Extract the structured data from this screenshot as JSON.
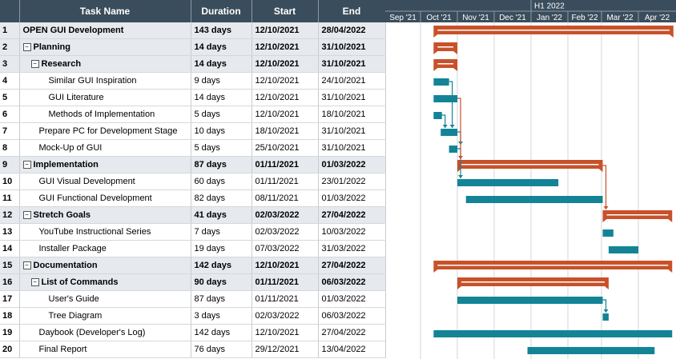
{
  "columns": {
    "id": "",
    "task": "Task Name",
    "duration": "Duration",
    "start": "Start",
    "end": "End"
  },
  "timeline": {
    "period": "H1 2022",
    "months": [
      "Sep '21",
      "Oct '21",
      "Nov '21",
      "Dec '21",
      "Jan '22",
      "Feb '22",
      "Mar '22",
      "Apr '22"
    ]
  },
  "colors": {
    "summary_bar": "#c8512a",
    "task_bar": "#138496",
    "header_bg": "#3a4d5c",
    "summary_row": "#e6e9ed"
  },
  "tasks": [
    {
      "id": "1",
      "name": "OPEN GUI Development",
      "duration": "143 days",
      "start": "12/10/2021",
      "end": "28/04/2022",
      "level": 0,
      "summary": true,
      "toggle": false,
      "s": "2021-10-12",
      "e": "2022-04-28"
    },
    {
      "id": "2",
      "name": "Planning",
      "duration": "14 days",
      "start": "12/10/2021",
      "end": "31/10/2021",
      "level": 0,
      "summary": true,
      "toggle": true,
      "s": "2021-10-12",
      "e": "2021-10-31"
    },
    {
      "id": "3",
      "name": "Research",
      "duration": "14 days",
      "start": "12/10/2021",
      "end": "31/10/2021",
      "level": 1,
      "summary": true,
      "toggle": true,
      "s": "2021-10-12",
      "e": "2021-10-31"
    },
    {
      "id": "4",
      "name": "Similar GUI Inspiration",
      "duration": "9 days",
      "start": "12/10/2021",
      "end": "24/10/2021",
      "level": 3,
      "summary": false,
      "toggle": false,
      "s": "2021-10-12",
      "e": "2021-10-24"
    },
    {
      "id": "5",
      "name": "GUI Literature",
      "duration": "14 days",
      "start": "12/10/2021",
      "end": "31/10/2021",
      "level": 3,
      "summary": false,
      "toggle": false,
      "s": "2021-10-12",
      "e": "2021-10-31"
    },
    {
      "id": "6",
      "name": "Methods of Implementation",
      "duration": "5 days",
      "start": "12/10/2021",
      "end": "18/10/2021",
      "level": 3,
      "summary": false,
      "toggle": false,
      "s": "2021-10-12",
      "e": "2021-10-18"
    },
    {
      "id": "7",
      "name": "Prepare PC for Development Stage",
      "duration": "10 days",
      "start": "18/10/2021",
      "end": "31/10/2021",
      "level": 2,
      "summary": false,
      "toggle": false,
      "s": "2021-10-18",
      "e": "2021-10-31"
    },
    {
      "id": "8",
      "name": "Mock-Up of GUI",
      "duration": "5 days",
      "start": "25/10/2021",
      "end": "31/10/2021",
      "level": 2,
      "summary": false,
      "toggle": false,
      "s": "2021-10-25",
      "e": "2021-10-31"
    },
    {
      "id": "9",
      "name": "Implementation",
      "duration": "87 days",
      "start": "01/11/2021",
      "end": "01/03/2022",
      "level": 0,
      "summary": true,
      "toggle": true,
      "s": "2021-11-01",
      "e": "2022-03-01"
    },
    {
      "id": "10",
      "name": "GUI Visual Development",
      "duration": "60 days",
      "start": "01/11/2021",
      "end": "23/01/2022",
      "level": 2,
      "summary": false,
      "toggle": false,
      "s": "2021-11-01",
      "e": "2022-01-23"
    },
    {
      "id": "11",
      "name": "GUI Functional Development",
      "duration": "82 days",
      "start": "08/11/2021",
      "end": "01/03/2022",
      "level": 2,
      "summary": false,
      "toggle": false,
      "s": "2021-11-08",
      "e": "2022-03-01"
    },
    {
      "id": "12",
      "name": "Stretch Goals",
      "duration": "41 days",
      "start": "02/03/2022",
      "end": "27/04/2022",
      "level": 0,
      "summary": true,
      "toggle": true,
      "s": "2022-03-02",
      "e": "2022-04-27"
    },
    {
      "id": "13",
      "name": "YouTube Instructional Series",
      "duration": "7 days",
      "start": "02/03/2022",
      "end": "10/03/2022",
      "level": 2,
      "summary": false,
      "toggle": false,
      "s": "2022-03-02",
      "e": "2022-03-10"
    },
    {
      "id": "14",
      "name": "Installer Package",
      "duration": "19 days",
      "start": "07/03/2022",
      "end": "31/03/2022",
      "level": 2,
      "summary": false,
      "toggle": false,
      "s": "2022-03-07",
      "e": "2022-03-31"
    },
    {
      "id": "15",
      "name": "Documentation",
      "duration": "142 days",
      "start": "12/10/2021",
      "end": "27/04/2022",
      "level": 0,
      "summary": true,
      "toggle": true,
      "s": "2021-10-12",
      "e": "2022-04-27"
    },
    {
      "id": "16",
      "name": "List of Commands",
      "duration": "90 days",
      "start": "01/11/2021",
      "end": "06/03/2022",
      "level": 1,
      "summary": true,
      "toggle": true,
      "s": "2021-11-01",
      "e": "2022-03-06"
    },
    {
      "id": "17",
      "name": "User's Guide",
      "duration": "87 days",
      "start": "01/11/2021",
      "end": "01/03/2022",
      "level": 3,
      "summary": false,
      "toggle": false,
      "s": "2021-11-01",
      "e": "2022-03-01"
    },
    {
      "id": "18",
      "name": "Tree Diagram",
      "duration": "3 days",
      "start": "02/03/2022",
      "end": "06/03/2022",
      "level": 3,
      "summary": false,
      "toggle": false,
      "s": "2022-03-02",
      "e": "2022-03-06"
    },
    {
      "id": "19",
      "name": "Daybook (Developer's Log)",
      "duration": "142 days",
      "start": "12/10/2021",
      "end": "27/04/2022",
      "level": 2,
      "summary": false,
      "toggle": false,
      "s": "2021-10-12",
      "e": "2022-04-27"
    },
    {
      "id": "20",
      "name": "Final Report",
      "duration": "76 days",
      "start": "29/12/2021",
      "end": "13/04/2022",
      "level": 2,
      "summary": false,
      "toggle": false,
      "s": "2021-12-29",
      "e": "2022-04-13"
    }
  ],
  "links": [
    [
      "4",
      "7"
    ],
    [
      "6",
      "7"
    ],
    [
      "7",
      "8"
    ],
    [
      "8",
      "10"
    ],
    [
      "5",
      "9"
    ],
    [
      "9",
      "12"
    ],
    [
      "17",
      "18"
    ]
  ]
}
